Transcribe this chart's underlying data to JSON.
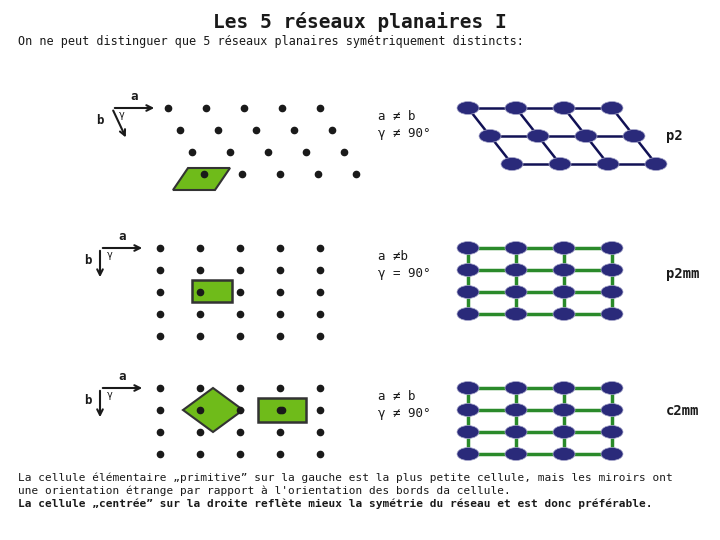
{
  "title": "Les 5 réseaux planaires I",
  "subtitle": "On ne peut distinguer que 5 réseaux planaires symétriquement distincts:",
  "bg_color": "#ffffff",
  "text_color": "#1a1a1a",
  "dot_color": "#1a1a1a",
  "green_color": "#6fbb1a",
  "dark_blue": "#2a2a7a",
  "green_line": "#2a8a2a",
  "label_p2": "p2",
  "label_p2mm": "p2mm",
  "label_c2mm": "c2mm",
  "footer_line1": "La cellule élémentaire „primitive” sur la gauche est la plus petite cellule, mais les miroirs ont",
  "footer_line2": "une orientation étrange par rapport à l'orientation des bords da cellule.",
  "footer_line3": "La cellule „centrée” sur la droite reflète mieux la symétrie du réseau et est donc préférable."
}
